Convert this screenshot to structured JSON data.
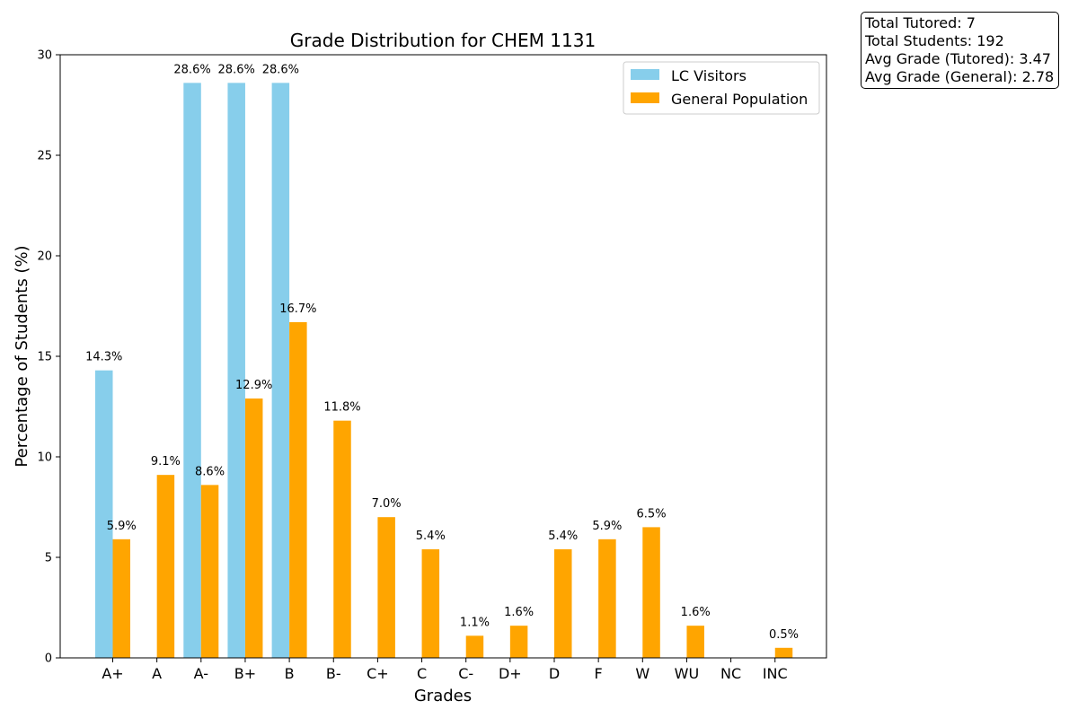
{
  "stats": {
    "total_tutored": "Total Tutored: 7",
    "total_students": "Total Students: 192",
    "avg_tutored": "Avg Grade (Tutored): 3.47",
    "avg_general": "Avg Grade (General): 2.78"
  },
  "colors": {
    "lc_visitors": "#87CEEB",
    "general_population": "#FFA500",
    "axis": "#000000"
  },
  "chart_data": {
    "type": "bar",
    "title": "Grade Distribution for CHEM 1131",
    "xlabel": "Grades",
    "ylabel": "Percentage of Students (%)",
    "ylim": [
      0,
      30
    ],
    "yticks": [
      0,
      5,
      10,
      15,
      20,
      25,
      30
    ],
    "grid": false,
    "legend_position": "top-right",
    "categories": [
      "A+",
      "A",
      "A-",
      "B+",
      "B",
      "B-",
      "C+",
      "C",
      "C-",
      "D+",
      "D",
      "F",
      "W",
      "WU",
      "NC",
      "INC"
    ],
    "series": [
      {
        "name": "LC Visitors",
        "color": "#87CEEB",
        "values": [
          14.3,
          0,
          28.6,
          28.6,
          28.6,
          0,
          0,
          0,
          0,
          0,
          0,
          0,
          0,
          0,
          0,
          0
        ],
        "labels": [
          "14.3%",
          "",
          "28.6%",
          "28.6%",
          "28.6%",
          "",
          "",
          "",
          "",
          "",
          "",
          "",
          "",
          "",
          "",
          ""
        ]
      },
      {
        "name": "General Population",
        "color": "#FFA500",
        "values": [
          5.9,
          9.1,
          8.6,
          12.9,
          16.7,
          11.8,
          7.0,
          5.4,
          1.1,
          1.6,
          5.4,
          5.9,
          6.5,
          1.6,
          0,
          0.5
        ],
        "labels": [
          "5.9%",
          "9.1%",
          "8.6%",
          "12.9%",
          "16.7%",
          "11.8%",
          "7.0%",
          "5.4%",
          "1.1%",
          "1.6%",
          "5.4%",
          "5.9%",
          "6.5%",
          "1.6%",
          "",
          "0.5%"
        ]
      }
    ]
  }
}
